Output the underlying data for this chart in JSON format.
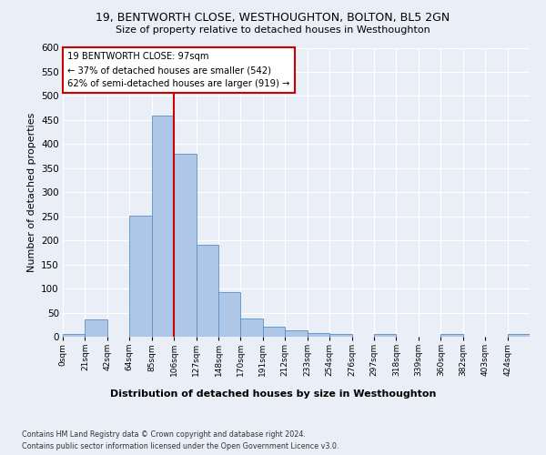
{
  "title1": "19, BENTWORTH CLOSE, WESTHOUGHTON, BOLTON, BL5 2GN",
  "title2": "Size of property relative to detached houses in Westhoughton",
  "xlabel": "Distribution of detached houses by size in Westhoughton",
  "ylabel": "Number of detached properties",
  "bin_labels": [
    "0sqm",
    "21sqm",
    "42sqm",
    "64sqm",
    "85sqm",
    "106sqm",
    "127sqm",
    "148sqm",
    "170sqm",
    "191sqm",
    "212sqm",
    "233sqm",
    "254sqm",
    "276sqm",
    "297sqm",
    "318sqm",
    "339sqm",
    "360sqm",
    "382sqm",
    "403sqm",
    "424sqm"
  ],
  "bar_heights": [
    5,
    35,
    0,
    252,
    460,
    380,
    190,
    92,
    38,
    20,
    13,
    7,
    6,
    0,
    5,
    0,
    0,
    5,
    0,
    0,
    5
  ],
  "bar_color": "#aec6e8",
  "bar_edge_color": "#5a8fc2",
  "property_line_label": "19 BENTWORTH CLOSE: 97sqm",
  "annotation_line1": "← 37% of detached houses are smaller (542)",
  "annotation_line2": "62% of semi-detached houses are larger (919) →",
  "annotation_box_color": "#ffffff",
  "annotation_box_edge": "#cc0000",
  "vline_color": "#cc0000",
  "vline_x": 5.0,
  "ylim": [
    0,
    600
  ],
  "yticks": [
    0,
    50,
    100,
    150,
    200,
    250,
    300,
    350,
    400,
    450,
    500,
    550,
    600
  ],
  "footer1": "Contains HM Land Registry data © Crown copyright and database right 2024.",
  "footer2": "Contains public sector information licensed under the Open Government Licence v3.0.",
  "bg_color": "#eaeff7",
  "plot_bg_color": "#eaeff7"
}
